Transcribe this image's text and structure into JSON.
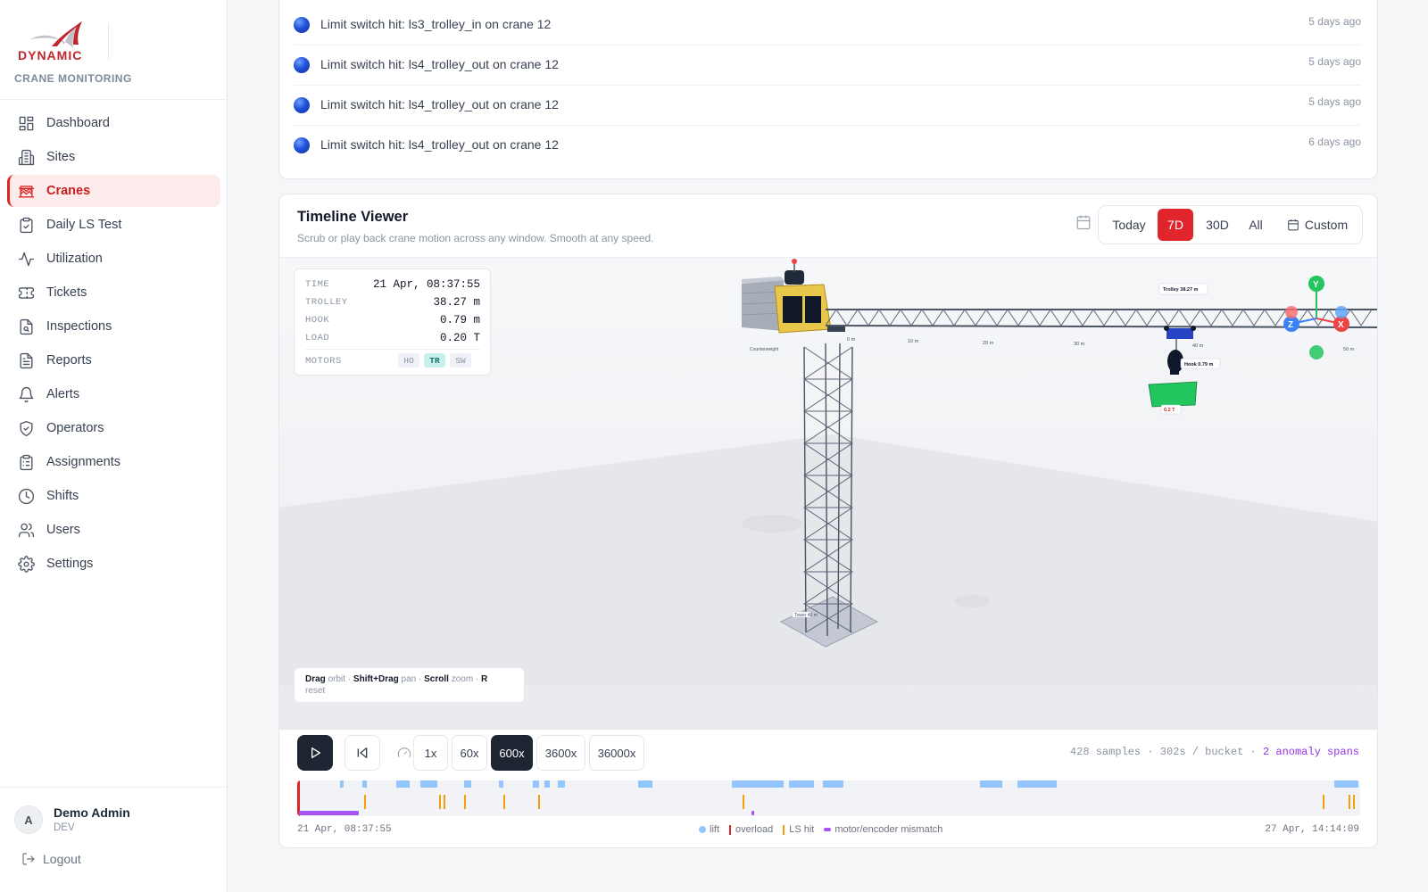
{
  "app": {
    "brand_name": "DYNAMIC",
    "brand_subtitle": "CRANE MONITORING"
  },
  "sidebar": {
    "items": [
      {
        "label": "Dashboard",
        "icon": "dashboard-icon"
      },
      {
        "label": "Sites",
        "icon": "building-icon"
      },
      {
        "label": "Cranes",
        "icon": "crane-icon",
        "active": true
      },
      {
        "label": "Daily LS Test",
        "icon": "clipboard-check-icon"
      },
      {
        "label": "Utilization",
        "icon": "activity-icon"
      },
      {
        "label": "Tickets",
        "icon": "ticket-icon"
      },
      {
        "label": "Inspections",
        "icon": "file-search-icon"
      },
      {
        "label": "Reports",
        "icon": "file-text-icon"
      },
      {
        "label": "Alerts",
        "icon": "bell-icon"
      },
      {
        "label": "Operators",
        "icon": "shield-check-icon"
      },
      {
        "label": "Assignments",
        "icon": "clipboard-list-icon"
      },
      {
        "label": "Shifts",
        "icon": "clock-icon"
      },
      {
        "label": "Users",
        "icon": "users-icon"
      },
      {
        "label": "Settings",
        "icon": "gear-icon"
      }
    ]
  },
  "user": {
    "initial": "A",
    "name": "Demo Admin",
    "role": "DEV",
    "logout_label": "Logout"
  },
  "alerts": [
    {
      "text": "Limit switch hit: ls3_trolley_in on crane 12",
      "time": "5 days ago"
    },
    {
      "text": "Limit switch hit: ls4_trolley_out on crane 12",
      "time": "5 days ago"
    },
    {
      "text": "Limit switch hit: ls4_trolley_out on crane 12",
      "time": "5 days ago"
    },
    {
      "text": "Limit switch hit: ls4_trolley_out on crane 12",
      "time": "6 days ago"
    }
  ],
  "timeline": {
    "title": "Timeline Viewer",
    "subtitle": "Scrub or play back crane motion across any window. Smooth at any speed.",
    "ranges": [
      "Today",
      "7D",
      "30D",
      "All"
    ],
    "active_range": "7D",
    "custom_label": "Custom",
    "hud": {
      "time_label": "TIME",
      "time_value": "21 Apr, 08:37:55",
      "trolley_label": "TROLLEY",
      "trolley_value": "38.27 m",
      "hook_label": "HOOK",
      "hook_value": "0.79 m",
      "load_label": "LOAD",
      "load_value": "0.20 T",
      "motors_label": "MOTORS",
      "motors": [
        {
          "name": "HO",
          "on": false
        },
        {
          "name": "TR",
          "on": true
        },
        {
          "name": "SW",
          "on": false
        }
      ]
    },
    "scene_labels": {
      "trolley_tag": "Trolley 38.27 m",
      "hook_tag": "Hook 0.79 m",
      "load_tag": "0.2 T",
      "counterweight": "Counterweight",
      "tower": "Tower 40 m",
      "jib_marks": [
        "0 m",
        "10 m",
        "20 m",
        "30 m",
        "40 m",
        "50 m"
      ],
      "axes": {
        "x": "X",
        "y": "Y",
        "z": "Z"
      }
    },
    "hint": {
      "drag": "Drag",
      "drag_action": "orbit",
      "shift_drag": "Shift+Drag",
      "shift_drag_action": "pan",
      "scroll": "Scroll",
      "scroll_action": "zoom",
      "r": "R",
      "r_action": "reset"
    },
    "speeds": [
      "1x",
      "60x",
      "600x",
      "3600x",
      "36000x"
    ],
    "active_speed": "600x",
    "stats_text": "428 samples · 302s / bucket ·",
    "anomaly_text": "2 anomaly spans",
    "range_start": "21 Apr, 08:37:55",
    "range_end": "27 Apr, 14:14:09",
    "legend": {
      "lift": "lift",
      "overload": "overload",
      "ls_hit": "LS hit",
      "mismatch": "motor/encoder mismatch"
    },
    "colors": {
      "lift": "#93c5fd",
      "overload": "#dc2626",
      "ls_hit": "#f59e0b",
      "mismatch": "#a855f7"
    },
    "track": {
      "scale_days": [
        0,
        6.23
      ],
      "lift_spans_days": [
        [
          0.25,
          0.27
        ],
        [
          0.38,
          0.41
        ],
        [
          0.58,
          0.66
        ],
        [
          0.72,
          0.82
        ],
        [
          0.98,
          1.02
        ],
        [
          1.18,
          1.21
        ],
        [
          1.38,
          1.42
        ],
        [
          1.45,
          1.48
        ],
        [
          1.53,
          1.57
        ],
        [
          2.0,
          2.08
        ],
        [
          2.55,
          2.85
        ],
        [
          2.88,
          3.03
        ],
        [
          3.08,
          3.2
        ],
        [
          4.0,
          4.13
        ],
        [
          4.22,
          4.45
        ],
        [
          6.08,
          6.22
        ]
      ],
      "overload_days": [
        0.0
      ],
      "ls_hit_days": [
        0.38,
        0.82,
        0.85,
        0.97,
        1.2,
        1.4,
        2.6,
        6.0,
        6.15,
        6.18
      ],
      "mismatch_spans_days": [
        [
          0.0,
          0.35
        ],
        [
          2.65,
          2.67
        ]
      ]
    }
  }
}
